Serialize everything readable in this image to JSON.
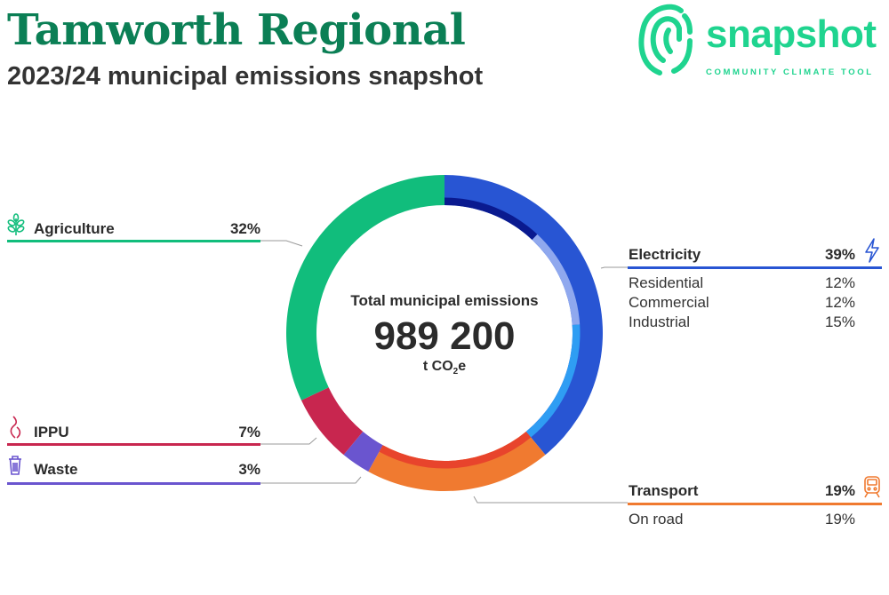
{
  "header": {
    "title": "Tamworth Regional",
    "subtitle": "2023/24 municipal emissions snapshot"
  },
  "logo": {
    "word": "snapshot",
    "tagline": "COMMUNITY CLIMATE TOOL",
    "icon": "fingerprint-icon",
    "color": "#1fd48f"
  },
  "center": {
    "label": "Total municipal emissions",
    "value": "989 200",
    "unit_prefix": "t CO",
    "unit_sub": "2",
    "unit_suffix": "e"
  },
  "chart_data": {
    "type": "pie",
    "variant": "donut",
    "total": 989200,
    "unit": "t CO2e",
    "start": "top",
    "direction": "clockwise",
    "sectors": [
      {
        "name": "Electricity",
        "percent": 39,
        "color": "#2855d3",
        "icon": "lightning-icon",
        "subsectors": [
          {
            "name": "Residential",
            "percent": 12,
            "color": "#0a1a8f"
          },
          {
            "name": "Commercial",
            "percent": 12,
            "color": "#8fa8ee"
          },
          {
            "name": "Industrial",
            "percent": 15,
            "color": "#2f9df3"
          }
        ]
      },
      {
        "name": "Transport",
        "percent": 19,
        "color": "#f07a30",
        "icon": "train-icon",
        "subsectors": [
          {
            "name": "On road",
            "percent": 19,
            "color": "#e8442c"
          }
        ]
      },
      {
        "name": "Waste",
        "percent": 3,
        "color": "#6a55cf",
        "icon": "bin-icon",
        "subsectors": []
      },
      {
        "name": "IPPU",
        "percent": 7,
        "color": "#c8264f",
        "icon": "smoke-icon",
        "subsectors": []
      },
      {
        "name": "Agriculture",
        "percent": 32,
        "color": "#11bd7c",
        "icon": "wheat-icon",
        "subsectors": []
      }
    ]
  },
  "labels": {
    "agriculture": {
      "name": "Agriculture",
      "pct": "32%"
    },
    "electricity": {
      "name": "Electricity",
      "pct": "39%"
    },
    "residential": {
      "name": "Residential",
      "pct": "12%"
    },
    "commercial": {
      "name": "Commercial",
      "pct": "12%"
    },
    "industrial": {
      "name": "Industrial",
      "pct": "15%"
    },
    "ippu": {
      "name": "IPPU",
      "pct": "7%"
    },
    "waste": {
      "name": "Waste",
      "pct": "3%"
    },
    "transport": {
      "name": "Transport",
      "pct": "19%"
    },
    "onroad": {
      "name": "On road",
      "pct": "19%"
    }
  }
}
